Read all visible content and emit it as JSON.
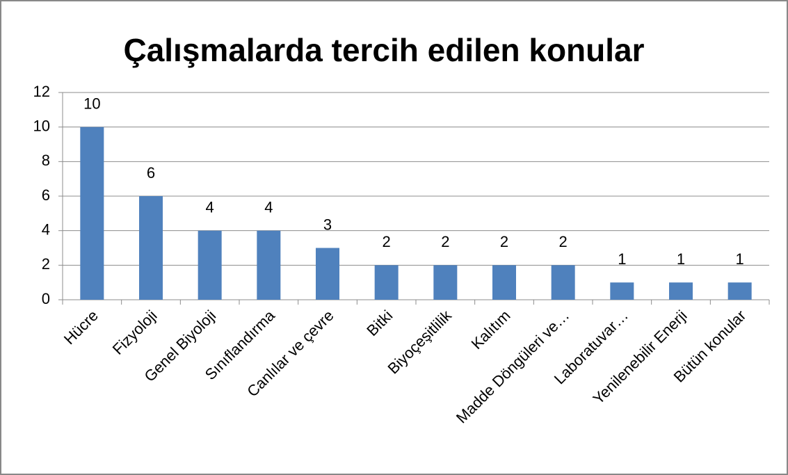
{
  "chart_data": {
    "type": "bar",
    "title": "Çalışmalarda tercih edilen konular",
    "categories": [
      "Hücre",
      "Fizyoloji",
      "Genel Biyoloji",
      "Sınıflandırma",
      "Canlılar ve çevre",
      "Bitki",
      "Biyoçeşitlilik",
      "Kalıtım",
      "Madde Döngüleri ve…",
      "Laboratuvar…",
      "Yenilenebilir Enerji",
      "Bütün konular"
    ],
    "values": [
      10,
      6,
      4,
      4,
      3,
      2,
      2,
      2,
      2,
      1,
      1,
      1
    ],
    "color": "#4f81bd",
    "ylim": [
      0,
      12
    ],
    "yticks": [
      0,
      2,
      4,
      6,
      8,
      10,
      12
    ],
    "grid": true
  }
}
